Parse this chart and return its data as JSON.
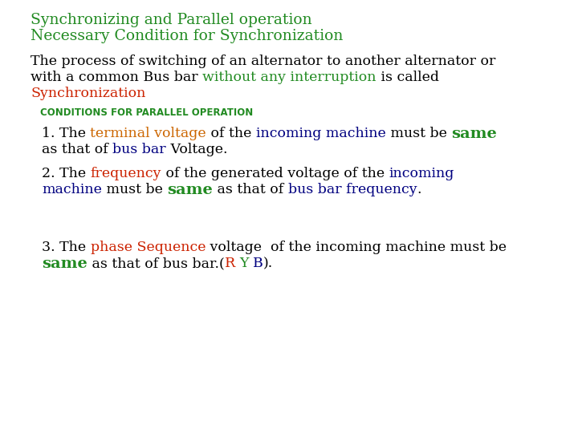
{
  "bg": "#ffffff",
  "green": "#228B22",
  "dark_green": "#228B22",
  "red": "#cc2200",
  "blue": "#000080",
  "orange": "#cc6600",
  "cyan_green": "#228B22",
  "black": "#000000",
  "title1": "Synchronizing and Parallel operation",
  "title2": "Necessary Condition for Synchronization",
  "title_fs": 13.5,
  "body_fs": 12.5,
  "same_fs": 14.0,
  "header_fs": 8.5,
  "fig_w": 7.2,
  "fig_h": 5.4,
  "dpi": 100
}
